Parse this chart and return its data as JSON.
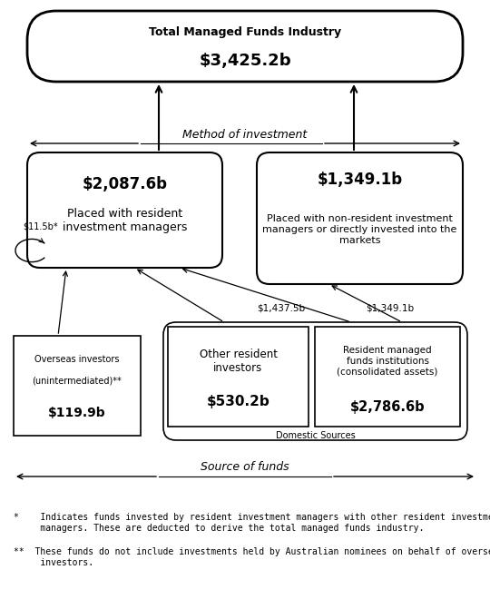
{
  "title": "Total Managed Funds Industry",
  "title_value": "$3,425.2b",
  "method_label": "Method of investment",
  "source_label": "Source of funds",
  "left_box_value": "$2,087.6b",
  "left_box_text": "Placed with resident\ninvestment managers",
  "right_box_value": "$1,349.1b",
  "right_box_text": "Placed with non-resident investment\nmanagers or directly invested into the\nmarkets",
  "overseas_label": "Overseas investors\n\n(unintermediated)**",
  "overseas_value": "$119.9b",
  "other_resident_label": "Other resident\ninvestors",
  "other_resident_value": "$530.2b",
  "resident_mf_label": "Resident managed\nfunds institutions\n(consolidated assets)",
  "resident_mf_value": "$2,786.6b",
  "domestic_label": "Domestic Sources",
  "self_loop_label": "$11.5b*",
  "flow_1437": "$1,437.5b",
  "flow_1349": "$1,349.1b",
  "footnote1": "*    Indicates funds invested by resident investment managers with other resident investment\n     managers. These are deducted to derive the total managed funds industry.",
  "footnote2": "**  These funds do not include investments held by Australian nominees on behalf of overseas\n     investors.",
  "bg_color": "#ffffff",
  "text_color": "#000000"
}
